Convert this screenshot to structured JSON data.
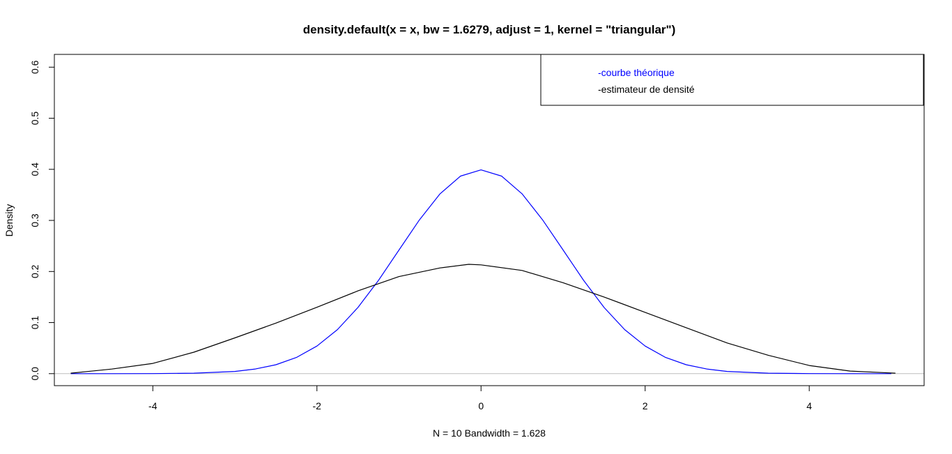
{
  "chart_data": {
    "type": "line",
    "title": "density.default(x = x, bw = 1.6279, adjust = 1, kernel = \"triangular\")",
    "xlabel": "N = 10   Bandwidth = 1.628",
    "ylabel": "Density",
    "xlim": [
      -5.2,
      5.4
    ],
    "ylim": [
      -0.0235,
      0.625
    ],
    "xticks": [
      -4,
      -2,
      0,
      2,
      4
    ],
    "xtick_labels": [
      "-4",
      "-2",
      "0",
      "2",
      "4"
    ],
    "yticks": [
      0.0,
      0.1,
      0.2,
      0.3,
      0.4,
      0.5,
      0.6
    ],
    "ytick_labels": [
      "0.0",
      "0.1",
      "0.2",
      "0.3",
      "0.4",
      "0.5",
      "0.6"
    ],
    "baseline": 0,
    "baseline_color": "#bebebe",
    "grid": false,
    "legend_position": "top-right",
    "series": [
      {
        "name": "-courbe théorique",
        "color": "#0000ff",
        "x": [
          -5.0,
          -4.5,
          -4.0,
          -3.5,
          -3.0,
          -2.75,
          -2.5,
          -2.25,
          -2.0,
          -1.75,
          -1.5,
          -1.25,
          -1.0,
          -0.75,
          -0.5,
          -0.25,
          0.0,
          0.25,
          0.5,
          0.75,
          1.0,
          1.25,
          1.5,
          1.75,
          2.0,
          2.25,
          2.5,
          2.75,
          3.0,
          3.5,
          4.0,
          4.5,
          5.0
        ],
        "y": [
          0.0,
          0.0,
          0.0001,
          0.0009,
          0.0044,
          0.0091,
          0.0175,
          0.0317,
          0.054,
          0.0863,
          0.1295,
          0.1826,
          0.242,
          0.3011,
          0.3521,
          0.3867,
          0.3989,
          0.3867,
          0.3521,
          0.3011,
          0.242,
          0.1826,
          0.1295,
          0.0863,
          0.054,
          0.0317,
          0.0175,
          0.0091,
          0.0044,
          0.0009,
          0.0001,
          0.0,
          0.0
        ]
      },
      {
        "name": "-estimateur de densité",
        "color": "#000000",
        "x": [
          -5.0,
          -4.5,
          -4.0,
          -3.5,
          -3.0,
          -2.5,
          -2.0,
          -1.5,
          -1.0,
          -0.5,
          -0.15,
          0.0,
          0.5,
          1.0,
          1.5,
          2.0,
          2.5,
          3.0,
          3.5,
          4.0,
          4.5,
          5.05
        ],
        "y": [
          0.001,
          0.009,
          0.02,
          0.042,
          0.07,
          0.099,
          0.13,
          0.162,
          0.19,
          0.207,
          0.214,
          0.213,
          0.202,
          0.178,
          0.15,
          0.12,
          0.09,
          0.06,
          0.036,
          0.016,
          0.005,
          0.001
        ]
      }
    ]
  }
}
